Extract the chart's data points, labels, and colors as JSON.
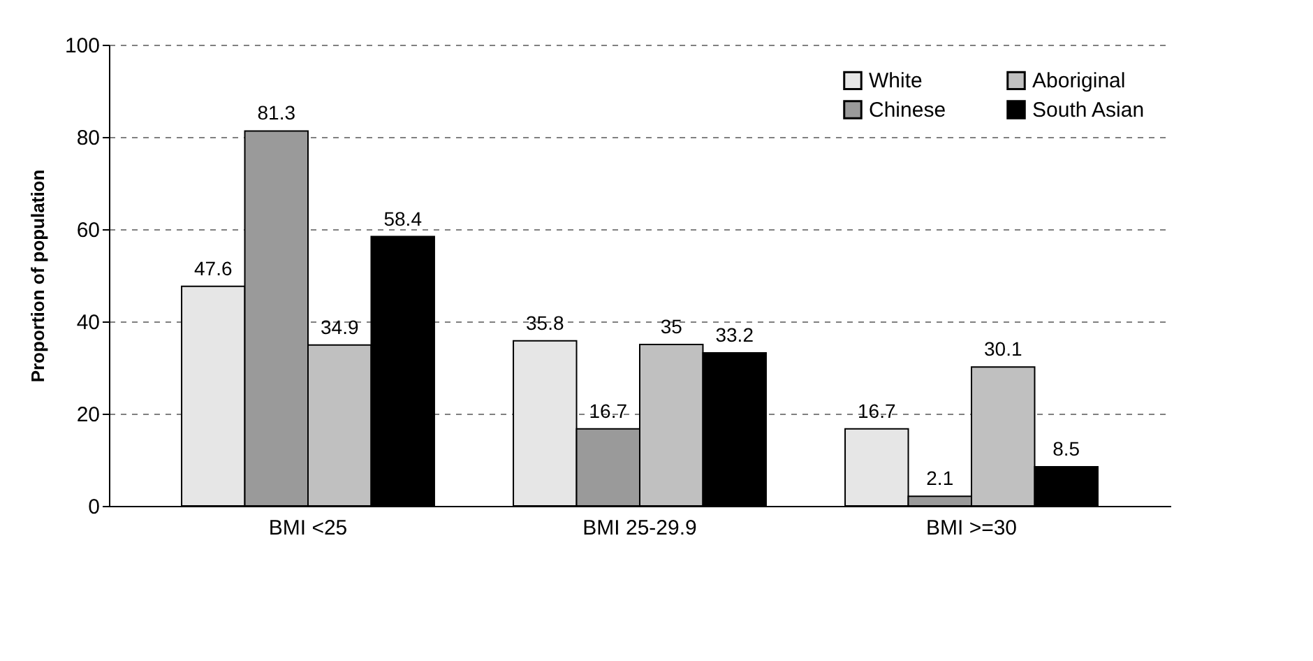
{
  "chart_data": {
    "type": "bar",
    "ylabel": "Proportion of population",
    "categories": [
      "BMI <25",
      "BMI 25-29.9",
      "BMI >=30"
    ],
    "series": [
      {
        "name": "White",
        "color": "#e6e6e6",
        "values": [
          47.6,
          35.8,
          16.7
        ]
      },
      {
        "name": "Chinese",
        "color": "#9a9a9a",
        "values": [
          81.3,
          16.7,
          2.1
        ]
      },
      {
        "name": "Aboriginal",
        "color": "#c0c0c0",
        "values": [
          34.9,
          35,
          30.1
        ]
      },
      {
        "name": "South Asian",
        "color": "#000000",
        "values": [
          58.4,
          33.2,
          8.5
        ]
      }
    ],
    "ylim": [
      0,
      100
    ],
    "yticks": [
      0,
      20,
      40,
      60,
      80,
      100
    ],
    "grid": "y",
    "legend": "top right",
    "data_labels": true
  }
}
